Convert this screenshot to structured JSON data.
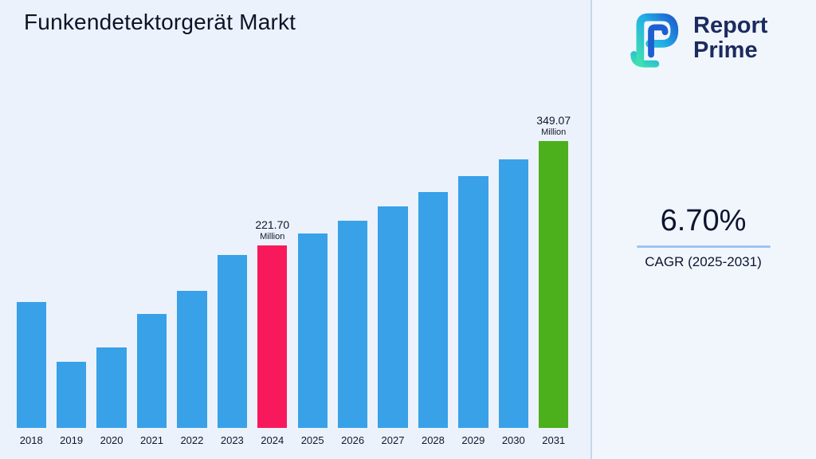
{
  "page": {
    "title": "Funkendetektorgerät Markt",
    "background": "#ECF2FB"
  },
  "logo": {
    "line1": "Report",
    "line2": "Prime",
    "text_color": "#1C2B5E",
    "mark_colors": [
      "#3FE0B0",
      "#22AEE6",
      "#1D5FD0"
    ]
  },
  "stat": {
    "value": "6.70%",
    "label": "CAGR (2025-2031)",
    "underline_color": "#9FC3F4"
  },
  "chart_data": {
    "type": "bar",
    "title": "Funkendetektorgerät Markt",
    "categories": [
      "2018",
      "2019",
      "2020",
      "2021",
      "2022",
      "2023",
      "2024",
      "2025",
      "2026",
      "2027",
      "2028",
      "2029",
      "2030",
      "2031"
    ],
    "values": [
      153,
      80,
      98,
      139,
      167,
      210,
      221.7,
      236.55,
      252.4,
      269.31,
      287.36,
      306.61,
      327.15,
      349.07
    ],
    "unit": "Million",
    "xlabel": "",
    "ylabel": "",
    "ylim": [
      0,
      380
    ],
    "grid": false,
    "legend": false,
    "bar_color": "#38A1E8",
    "highlight_bars": [
      {
        "category": "2024",
        "color": "#F8195C",
        "label": "221.70",
        "sublabel": "Million"
      },
      {
        "category": "2031",
        "color": "#4CAF1C",
        "label": "349.07",
        "sublabel": "Million"
      }
    ]
  }
}
